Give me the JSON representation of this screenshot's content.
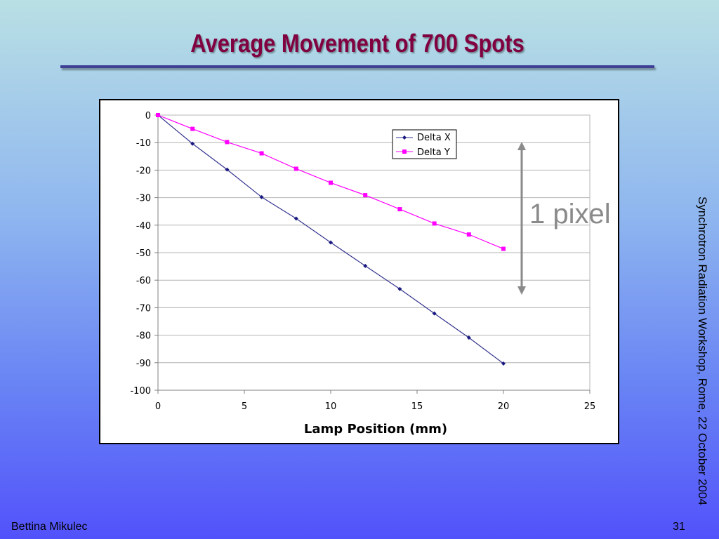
{
  "slide": {
    "title": "Average Movement of 700 Spots",
    "side_text": "Synchrotron Radiation Workshop, Rome, 22 October 2004",
    "author": "Bettina Mikulec",
    "page_number": "31",
    "annotation": "1 pixel",
    "colors": {
      "title": "#800040",
      "rule": "#3f3f96",
      "annotation": "#8a8a8a"
    }
  },
  "chart_data": {
    "type": "line",
    "title": "",
    "xlabel": "Lamp Position (mm)",
    "ylabel": "",
    "xlim": [
      0,
      25
    ],
    "ylim": [
      -100,
      0
    ],
    "xticks": [
      0,
      5,
      10,
      15,
      20,
      25
    ],
    "yticks": [
      0,
      -10,
      -20,
      -30,
      -40,
      -50,
      -60,
      -70,
      -80,
      -90,
      -100
    ],
    "grid": "horizontal",
    "legend_position": "top-right",
    "x": [
      0,
      2,
      4,
      6,
      8,
      10,
      12,
      14,
      16,
      18,
      20
    ],
    "series": [
      {
        "name": "Delta X",
        "color": "#33338f",
        "marker": "diamond",
        "values": [
          0,
          -10.4,
          -19.8,
          -29.8,
          -37.6,
          -46.3,
          -54.8,
          -63.2,
          -72.1,
          -80.9,
          -90.3
        ]
      },
      {
        "name": "Delta Y",
        "color": "#ff00ff",
        "marker": "square",
        "values": [
          0,
          -5,
          -9.8,
          -13.9,
          -19.5,
          -24.6,
          -29.1,
          -34.2,
          -39.4,
          -43.4,
          -48.6
        ]
      }
    ]
  }
}
